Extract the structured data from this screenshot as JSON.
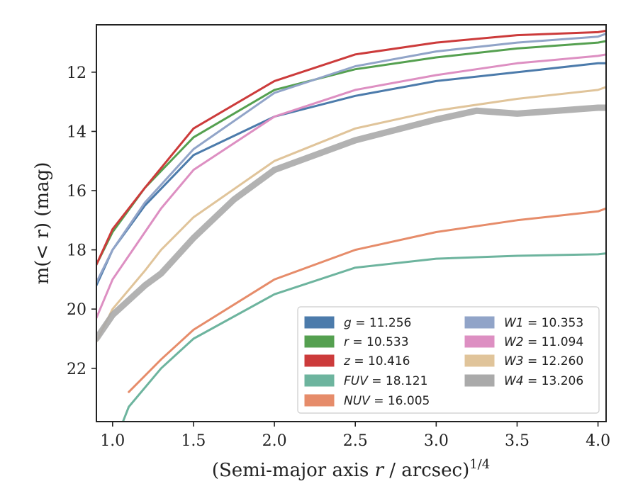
{
  "chart_data": {
    "type": "line",
    "xlabel_main": "(Semi-major axis ",
    "xlabel_var": "r",
    "xlabel_rest": " / arcsec)",
    "xlabel_sup": "1/4",
    "ylabel": "m(< r) (mag)",
    "xlim": [
      0.9,
      4.05
    ],
    "ylim": [
      23.8,
      10.4
    ],
    "y_inverted": true,
    "xticks": [
      "1.0",
      "1.5",
      "2.0",
      "2.5",
      "3.0",
      "3.5",
      "4.0"
    ],
    "yticks": [
      "12",
      "14",
      "16",
      "18",
      "20",
      "22"
    ],
    "legend_location": "lower-right",
    "series": [
      {
        "name": "g",
        "label": "= 11.256",
        "color": "#4c7bab",
        "x": [
          0.9,
          1.0,
          1.2,
          1.5,
          2.0,
          2.5,
          3.0,
          3.5,
          4.0,
          4.05
        ],
        "y": [
          19.2,
          18.0,
          16.5,
          14.8,
          13.5,
          12.8,
          12.3,
          12.0,
          11.7,
          11.7
        ]
      },
      {
        "name": "r",
        "label": "= 10.533",
        "color": "#55a050",
        "x": [
          0.9,
          1.0,
          1.2,
          1.5,
          2.0,
          2.5,
          3.0,
          3.5,
          4.0,
          4.05
        ],
        "y": [
          18.5,
          17.4,
          15.9,
          14.2,
          12.6,
          11.9,
          11.5,
          11.2,
          11.0,
          10.95
        ]
      },
      {
        "name": "z",
        "label": "= 10.416",
        "color": "#cc3b3b",
        "x": [
          0.9,
          1.0,
          1.2,
          1.5,
          2.0,
          2.5,
          3.0,
          3.5,
          4.0,
          4.05
        ],
        "y": [
          18.5,
          17.3,
          15.9,
          13.9,
          12.3,
          11.4,
          11.0,
          10.75,
          10.65,
          10.6
        ]
      },
      {
        "name": "FUV",
        "label": "= 18.121",
        "color": "#6db49e",
        "x": [
          1.05,
          1.1,
          1.3,
          1.5,
          2.0,
          2.5,
          3.0,
          3.5,
          4.0,
          4.05
        ],
        "y": [
          24.0,
          23.3,
          22.0,
          21.0,
          19.5,
          18.6,
          18.3,
          18.2,
          18.15,
          18.12
        ]
      },
      {
        "name": "NUV",
        "label": "= 16.005",
        "color": "#e68c6a",
        "x": [
          1.1,
          1.3,
          1.5,
          2.0,
          2.5,
          3.0,
          3.5,
          4.0,
          4.05
        ],
        "y": [
          22.8,
          21.7,
          20.7,
          19.0,
          18.0,
          17.4,
          17.0,
          16.7,
          16.6
        ]
      },
      {
        "name": "W1",
        "label": "= 10.353",
        "color": "#91a4c8",
        "x": [
          0.9,
          1.0,
          1.2,
          1.3,
          1.5,
          2.0,
          2.5,
          3.0,
          3.5,
          4.0,
          4.05
        ],
        "y": [
          19.1,
          18.0,
          16.4,
          15.8,
          14.6,
          12.7,
          11.8,
          11.3,
          11.0,
          10.8,
          10.7
        ]
      },
      {
        "name": "W2",
        "label": "= 11.094",
        "color": "#dd8fc2",
        "x": [
          0.9,
          1.0,
          1.2,
          1.3,
          1.5,
          2.0,
          2.5,
          3.0,
          3.5,
          4.0,
          4.05
        ],
        "y": [
          20.3,
          19.0,
          17.4,
          16.6,
          15.3,
          13.5,
          12.6,
          12.1,
          11.7,
          11.45,
          11.4
        ]
      },
      {
        "name": "W3",
        "label": "= 12.260",
        "color": "#e0c49a",
        "x": [
          0.9,
          1.0,
          1.2,
          1.3,
          1.5,
          2.0,
          2.5,
          3.0,
          3.5,
          4.0,
          4.05
        ],
        "y": [
          21.1,
          20.0,
          18.7,
          18.0,
          16.9,
          15.0,
          13.9,
          13.3,
          12.9,
          12.6,
          12.5
        ]
      },
      {
        "name": "W4",
        "label": "= 13.206",
        "color": "#aaaaaa",
        "x": [
          0.9,
          1.0,
          1.2,
          1.3,
          1.5,
          1.75,
          2.0,
          2.5,
          3.0,
          3.25,
          3.5,
          3.75,
          4.0,
          4.05
        ],
        "y": [
          21.0,
          20.2,
          19.2,
          18.8,
          17.6,
          16.3,
          15.3,
          14.3,
          13.6,
          13.3,
          13.4,
          13.3,
          13.2,
          13.2
        ]
      }
    ]
  }
}
